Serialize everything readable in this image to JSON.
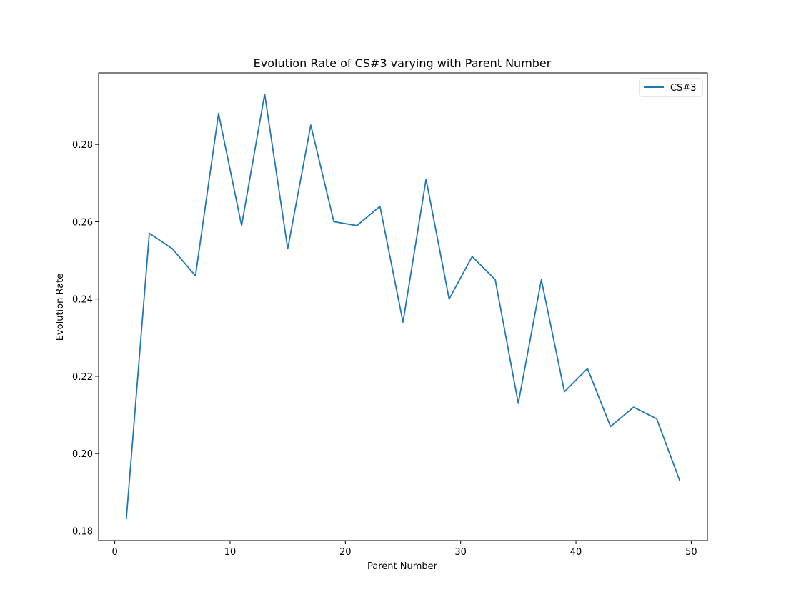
{
  "chart_data": {
    "type": "line",
    "title": "Evolution Rate of CS#3 varying with Parent Number",
    "xlabel": "Parent Number",
    "ylabel": "Evolution Rate",
    "xlim": [
      -1.4,
      51.4
    ],
    "ylim": [
      0.1775,
      0.2985
    ],
    "xticks": [
      0,
      10,
      20,
      30,
      40,
      50
    ],
    "yticks": [
      0.18,
      0.2,
      0.22,
      0.24,
      0.26,
      0.28
    ],
    "xtick_labels": [
      "0",
      "10",
      "20",
      "30",
      "40",
      "50"
    ],
    "ytick_labels": [
      "0.18",
      "0.20",
      "0.22",
      "0.24",
      "0.26",
      "0.28"
    ],
    "grid": false,
    "legend_position": "top-right",
    "series": [
      {
        "name": "CS#3",
        "color": "#1f77b4",
        "x": [
          1,
          3,
          5,
          7,
          9,
          11,
          13,
          15,
          17,
          19,
          21,
          23,
          25,
          27,
          29,
          31,
          33,
          35,
          37,
          39,
          41,
          43,
          45,
          47,
          49
        ],
        "y": [
          0.183,
          0.257,
          0.253,
          0.246,
          0.288,
          0.259,
          0.293,
          0.253,
          0.285,
          0.26,
          0.259,
          0.264,
          0.234,
          0.271,
          0.24,
          0.251,
          0.245,
          0.213,
          0.245,
          0.216,
          0.222,
          0.207,
          0.212,
          0.209,
          0.193
        ]
      }
    ]
  }
}
